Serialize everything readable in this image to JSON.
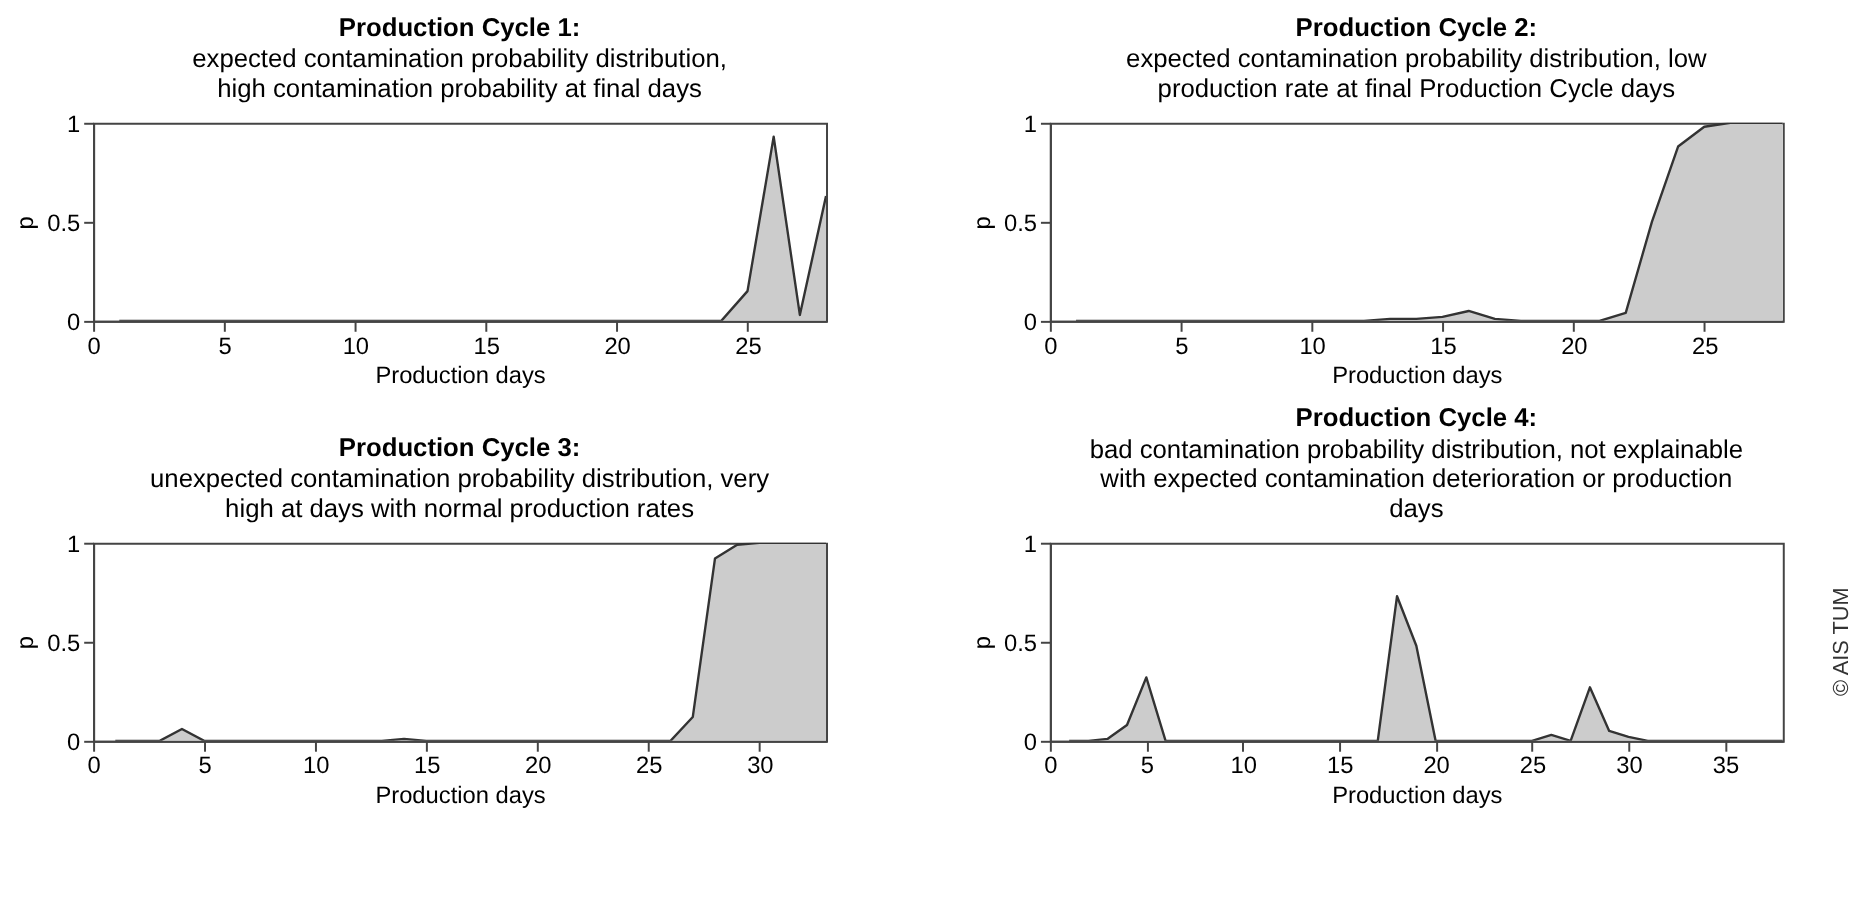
{
  "chart_data": [
    {
      "type": "area",
      "title": "Production Cycle 1:",
      "subtitle": "expected contamination probability distribution,\nhigh contamination probability at final days",
      "xlabel": "Production days",
      "ylabel": "p",
      "xlim": [
        0,
        28
      ],
      "xticks": [
        0,
        5,
        10,
        15,
        20,
        25
      ],
      "ylim": [
        0,
        1
      ],
      "yticks": [
        0,
        0.5,
        1
      ],
      "grid": false,
      "x": [
        1,
        2,
        3,
        4,
        5,
        6,
        7,
        8,
        9,
        10,
        11,
        12,
        13,
        14,
        15,
        16,
        17,
        18,
        19,
        20,
        21,
        22,
        23,
        24,
        25,
        26,
        27,
        28
      ],
      "series": [
        {
          "color": "#cccccc",
          "values": [
            0,
            0,
            0,
            0,
            0,
            0,
            0,
            0,
            0,
            0,
            0,
            0,
            0,
            0,
            0,
            0,
            0,
            0,
            0,
            0,
            0,
            0,
            0,
            0,
            0.15,
            0.93,
            0.03,
            0.63
          ]
        }
      ]
    },
    {
      "type": "area",
      "title": "Production Cycle 2:",
      "subtitle": "expected contamination probability distribution, low\nproduction rate at final Production Cycle days",
      "xlabel": "Production days",
      "ylabel": "p",
      "xlim": [
        0,
        28
      ],
      "xticks": [
        0,
        5,
        10,
        15,
        20,
        25
      ],
      "ylim": [
        0,
        1
      ],
      "yticks": [
        0,
        0.5,
        1
      ],
      "grid": false,
      "x": [
        1,
        2,
        3,
        4,
        5,
        6,
        7,
        8,
        9,
        10,
        11,
        12,
        13,
        14,
        15,
        16,
        17,
        18,
        19,
        20,
        21,
        22,
        23,
        24,
        25,
        26,
        27,
        28
      ],
      "series": [
        {
          "color": "#cccccc",
          "values": [
            0,
            0,
            0,
            0,
            0,
            0,
            0,
            0,
            0,
            0,
            0,
            0,
            0.01,
            0.01,
            0.02,
            0.05,
            0.01,
            0,
            0,
            0,
            0,
            0.04,
            0.5,
            0.88,
            0.98,
            1,
            1,
            1
          ]
        }
      ]
    },
    {
      "type": "area",
      "title": "Production Cycle 3:",
      "subtitle": "unexpected contamination probability distribution, very\nhigh at days with normal production rates",
      "xlabel": "Production days",
      "ylabel": "p",
      "xlim": [
        0,
        33
      ],
      "xticks": [
        0,
        5,
        10,
        15,
        20,
        25,
        30
      ],
      "ylim": [
        0,
        1
      ],
      "yticks": [
        0,
        0.5,
        1
      ],
      "grid": false,
      "x": [
        1,
        2,
        3,
        4,
        5,
        6,
        7,
        8,
        9,
        10,
        11,
        12,
        13,
        14,
        15,
        16,
        17,
        18,
        19,
        20,
        21,
        22,
        23,
        24,
        25,
        26,
        27,
        28,
        29,
        30,
        31,
        32,
        33
      ],
      "series": [
        {
          "color": "#cccccc",
          "values": [
            0,
            0,
            0,
            0.06,
            0,
            0,
            0,
            0,
            0,
            0,
            0,
            0,
            0,
            0.01,
            0,
            0,
            0,
            0,
            0,
            0,
            0,
            0,
            0,
            0,
            0,
            0,
            0.12,
            0.92,
            0.99,
            1,
            1,
            1,
            1
          ]
        }
      ]
    },
    {
      "type": "area",
      "title": "Production Cycle 4:",
      "subtitle": "bad contamination probability distribution, not explainable\nwith expected contamination deterioration or production\ndays",
      "xlabel": "Production days",
      "ylabel": "p",
      "xlim": [
        0,
        38
      ],
      "xticks": [
        0,
        5,
        10,
        15,
        20,
        25,
        30,
        35
      ],
      "ylim": [
        0,
        1
      ],
      "yticks": [
        0,
        0.5,
        1
      ],
      "grid": false,
      "annotations": [
        "© AIS TUM"
      ],
      "x": [
        1,
        2,
        3,
        4,
        5,
        6,
        7,
        8,
        9,
        10,
        11,
        12,
        13,
        14,
        15,
        16,
        17,
        18,
        19,
        20,
        21,
        22,
        23,
        24,
        25,
        26,
        27,
        28,
        29,
        30,
        31,
        32,
        33,
        34,
        35,
        36,
        37,
        38
      ],
      "series": [
        {
          "color": "#cccccc",
          "values": [
            0,
            0,
            0.01,
            0.08,
            0.32,
            0,
            0,
            0,
            0,
            0,
            0,
            0,
            0,
            0,
            0,
            0,
            0,
            0.73,
            0.48,
            0,
            0,
            0,
            0,
            0,
            0,
            0.03,
            0,
            0.27,
            0.05,
            0.02,
            0,
            0,
            0,
            0,
            0,
            0,
            0,
            0
          ]
        }
      ]
    }
  ]
}
